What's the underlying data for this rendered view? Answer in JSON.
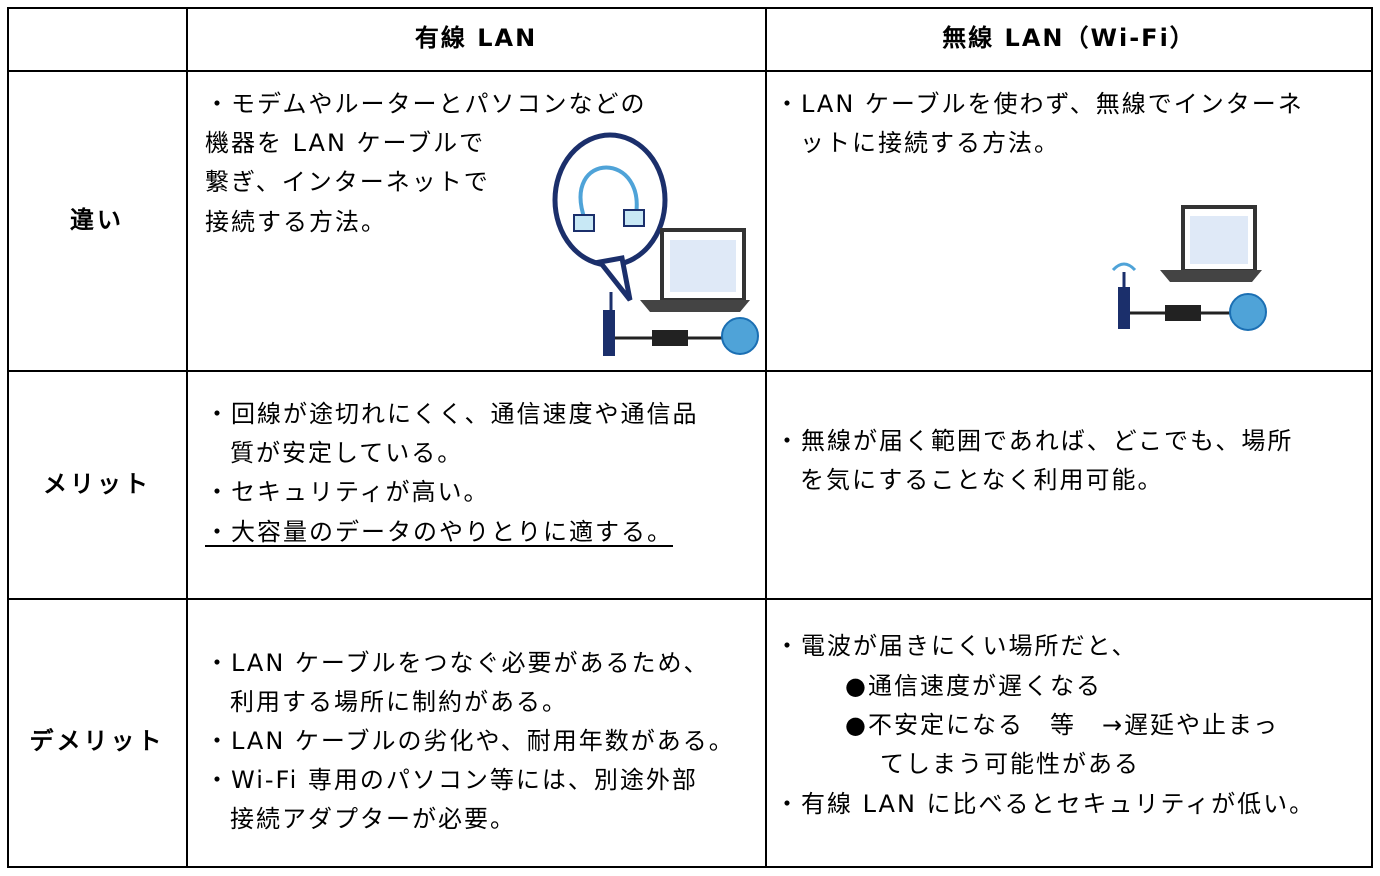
{
  "table": {
    "header": {
      "wired": "有線 LAN",
      "wireless": "無線 LAN（Wi-Fi）"
    },
    "rows": [
      {
        "label": "違い",
        "wired": [
          "・モデムやルーターとパソコンなどの",
          "機器を LAN ケーブルで",
          "繋ぎ、インターネットで",
          "接続する方法。"
        ],
        "wireless": [
          "・LAN ケーブルを使わず、無線でインターネ",
          "ットに接続する方法。"
        ]
      },
      {
        "label": "メリット",
        "wired": [
          "・回線が途切れにくく、通信速度や通信品",
          "質が安定している。",
          "・セキュリティが高い。",
          "・大容量のデータのやりとりに適する。"
        ],
        "wireless": [
          "・無線が届く範囲であれば、どこでも、場所",
          "を気にすることなく利用可能。"
        ]
      },
      {
        "label": "デメリット",
        "wired": [
          "・LAN ケーブルをつなぐ必要があるため、",
          "利用する場所に制約がある。",
          "・LAN ケーブルの劣化や、耐用年数がある。",
          "・Wi-Fi 専用のパソコン等には、別途外部",
          "接続アダプターが必要。"
        ],
        "wireless": [
          "・電波が届きにくい場所だと、",
          "●通信速度が遅くなる",
          "●不安定になる　等　→遅延や止まっ",
          "てしまう可能性がある",
          "・有線 LAN に比べるとセキュリティが低い。"
        ]
      }
    ]
  }
}
